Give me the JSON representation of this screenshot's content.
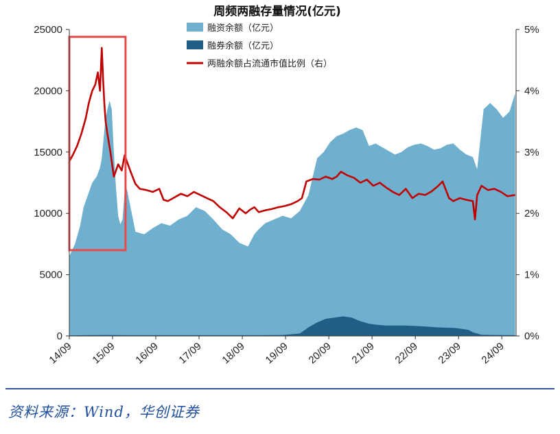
{
  "chart_data": {
    "type": "area",
    "title": "周频两融存量情况(亿元)",
    "x_ticks": [
      "14/09",
      "15/09",
      "16/09",
      "17/09",
      "18/09",
      "19/09",
      "20/09",
      "21/09",
      "22/09",
      "23/09",
      "24/09"
    ],
    "y_left_ticks": [
      "25000",
      "20000",
      "15000",
      "10000",
      "5000",
      "0"
    ],
    "y_left_lim": [
      0,
      25000
    ],
    "y_right_ticks": [
      "5%",
      "4%",
      "3%",
      "2%",
      "1%",
      "0%"
    ],
    "y_right_lim": [
      0,
      5
    ],
    "grid": false,
    "legend_position": "top",
    "series": [
      {
        "name": "融资余额（亿元）",
        "kind": "area",
        "axis": "left",
        "color": "#6fb0cf",
        "x": [
          2014.67,
          2014.8,
          2014.92,
          2015.0,
          2015.1,
          2015.2,
          2015.3,
          2015.38,
          2015.42,
          2015.46,
          2015.5,
          2015.55,
          2015.6,
          2015.65,
          2015.7,
          2015.75,
          2015.8,
          2015.85,
          2015.9,
          2015.95,
          2016.0,
          2016.2,
          2016.4,
          2016.6,
          2016.8,
          2017.0,
          2017.2,
          2017.4,
          2017.6,
          2017.8,
          2018.0,
          2018.2,
          2018.4,
          2018.6,
          2018.8,
          2018.95,
          2019.05,
          2019.2,
          2019.4,
          2019.6,
          2019.8,
          2020.0,
          2020.2,
          2020.4,
          2020.55,
          2020.7,
          2020.85,
          2021.0,
          2021.15,
          2021.3,
          2021.45,
          2021.6,
          2021.75,
          2021.9,
          2022.05,
          2022.2,
          2022.35,
          2022.5,
          2022.65,
          2022.8,
          2022.95,
          2023.1,
          2023.25,
          2023.4,
          2023.55,
          2023.7,
          2023.85,
          2024.0,
          2024.1,
          2024.25,
          2024.4,
          2024.55,
          2024.7,
          2024.85,
          2024.98
        ],
        "y": [
          6500,
          7500,
          9000,
          10500,
          11500,
          12500,
          13000,
          13700,
          14500,
          16000,
          17500,
          18500,
          19200,
          18500,
          15000,
          12000,
          9800,
          9100,
          9500,
          11800,
          12000,
          8500,
          8300,
          8800,
          9200,
          9000,
          9500,
          9800,
          10500,
          10200,
          9500,
          8700,
          8300,
          7600,
          7300,
          8300,
          8700,
          9200,
          9500,
          9800,
          9600,
          10200,
          11500,
          14500,
          15000,
          15800,
          16300,
          16500,
          16800,
          17000,
          16800,
          15500,
          15700,
          15400,
          15100,
          14800,
          15000,
          15400,
          15600,
          15700,
          15500,
          15200,
          15300,
          15600,
          15700,
          15200,
          14800,
          14600,
          13600,
          18500,
          19000,
          18500,
          17800,
          18300,
          19800
        ]
      },
      {
        "name": "融券余额（亿元）",
        "kind": "area",
        "axis": "left",
        "color": "#1f5f86",
        "x": [
          2014.67,
          2015.0,
          2015.5,
          2016.0,
          2017.0,
          2018.0,
          2019.0,
          2019.6,
          2020.0,
          2020.2,
          2020.4,
          2020.6,
          2020.8,
          2021.0,
          2021.2,
          2021.4,
          2021.6,
          2021.8,
          2022.0,
          2022.4,
          2022.8,
          2023.2,
          2023.6,
          2023.9,
          2024.0,
          2024.2,
          2024.5,
          2024.98
        ],
        "y": [
          40,
          60,
          80,
          60,
          60,
          60,
          60,
          80,
          200,
          700,
          1100,
          1400,
          1500,
          1600,
          1500,
          1200,
          1000,
          900,
          850,
          850,
          800,
          700,
          650,
          500,
          300,
          100,
          80,
          60
        ]
      },
      {
        "name": "两融余额占流通市值比例（右）",
        "kind": "line",
        "axis": "right",
        "color": "#c00000",
        "x": [
          2014.67,
          2014.75,
          2014.85,
          2014.95,
          2015.05,
          2015.12,
          2015.2,
          2015.27,
          2015.33,
          2015.38,
          2015.42,
          2015.45,
          2015.48,
          2015.51,
          2015.55,
          2015.62,
          2015.7,
          2015.8,
          2015.88,
          2015.95,
          2016.0,
          2016.05,
          2016.12,
          2016.2,
          2016.3,
          2016.45,
          2016.6,
          2016.75,
          2016.85,
          2016.95,
          2017.1,
          2017.25,
          2017.4,
          2017.55,
          2017.7,
          2017.85,
          2018.0,
          2018.15,
          2018.3,
          2018.45,
          2018.6,
          2018.75,
          2018.85,
          2018.95,
          2019.05,
          2019.2,
          2019.35,
          2019.5,
          2019.65,
          2019.8,
          2019.95,
          2020.05,
          2020.15,
          2020.3,
          2020.45,
          2020.6,
          2020.75,
          2020.85,
          2020.95,
          2021.1,
          2021.25,
          2021.4,
          2021.55,
          2021.7,
          2021.85,
          2022.0,
          2022.15,
          2022.3,
          2022.45,
          2022.6,
          2022.75,
          2022.9,
          2023.05,
          2023.2,
          2023.3,
          2023.45,
          2023.55,
          2023.7,
          2023.85,
          2024.0,
          2024.05,
          2024.1,
          2024.2,
          2024.35,
          2024.5,
          2024.65,
          2024.8,
          2024.98
        ],
        "y": [
          2.85,
          2.95,
          3.1,
          3.3,
          3.55,
          3.8,
          4.0,
          4.1,
          4.3,
          4.0,
          4.7,
          4.2,
          3.8,
          3.5,
          3.3,
          3.0,
          2.6,
          2.8,
          2.7,
          2.95,
          2.85,
          2.75,
          2.62,
          2.48,
          2.4,
          2.38,
          2.35,
          2.4,
          2.22,
          2.2,
          2.26,
          2.32,
          2.28,
          2.35,
          2.3,
          2.25,
          2.2,
          2.1,
          2.02,
          1.92,
          2.08,
          2.0,
          2.06,
          2.1,
          2.02,
          2.05,
          2.07,
          2.1,
          2.12,
          2.15,
          2.2,
          2.25,
          2.52,
          2.56,
          2.55,
          2.6,
          2.56,
          2.6,
          2.68,
          2.62,
          2.58,
          2.5,
          2.55,
          2.45,
          2.5,
          2.42,
          2.35,
          2.3,
          2.4,
          2.25,
          2.32,
          2.3,
          2.36,
          2.45,
          2.52,
          2.25,
          2.2,
          2.25,
          2.22,
          2.2,
          1.9,
          2.3,
          2.45,
          2.38,
          2.4,
          2.35,
          2.28,
          2.3
        ]
      }
    ],
    "annotation": {
      "type": "highlight-box",
      "x_range": [
        2014.67,
        2015.97
      ],
      "y_range": [
        7000,
        24400
      ],
      "color": "#e84a4a"
    }
  },
  "source_text": "资料来源：Wind，华创证券"
}
